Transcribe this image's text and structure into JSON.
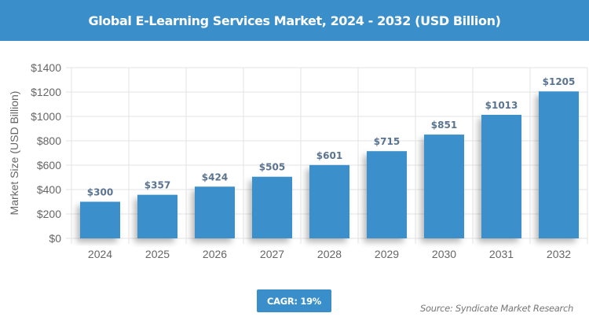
{
  "header": {
    "title": "Global E-Learning Services Market, 2024 - 2032 (USD Billion)"
  },
  "chart_data": {
    "type": "bar",
    "title": "Global E-Learning Services Market, 2024 - 2032 (USD Billion)",
    "xlabel": "",
    "ylabel": "Market Size (USD Billion)",
    "categories": [
      "2024",
      "2025",
      "2026",
      "2027",
      "2028",
      "2029",
      "2030",
      "2031",
      "2032"
    ],
    "values": [
      300,
      357,
      424,
      505,
      601,
      715,
      851,
      1013,
      1205
    ],
    "data_labels": [
      "$300",
      "$357",
      "$424",
      "$505",
      "$601",
      "$715",
      "$851",
      "$1013",
      "$1205"
    ],
    "ylim": [
      0,
      1400
    ],
    "y_ticks": [
      0,
      200,
      400,
      600,
      800,
      1000,
      1200,
      1400
    ],
    "y_tick_labels": [
      "$0",
      "$200",
      "$400",
      "$600",
      "$800",
      "$1000",
      "$1200",
      "$1400"
    ],
    "grid": true,
    "legend": null,
    "bar_color": "#3a8fca"
  },
  "footer": {
    "cagr_label": "CAGR: 19%",
    "source": "Source: Syndicate Market Research"
  },
  "colors": {
    "accent": "#3a8fca",
    "value_label": "#5a7390",
    "axis_text": "#666666",
    "grid": "#e3e3e3"
  }
}
